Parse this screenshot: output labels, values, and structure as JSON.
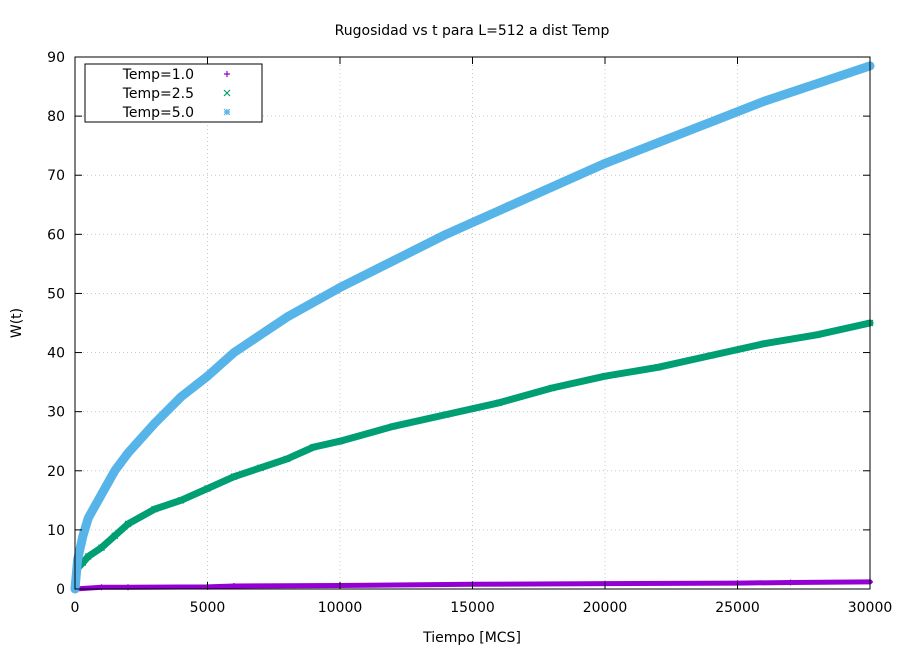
{
  "chart_data": {
    "type": "scatter",
    "title": "Rugosidad vs t para L=512 a dist Temp",
    "xlabel": "Tiempo [MCS]",
    "ylabel": "W(t)",
    "xlim": [
      0,
      30000
    ],
    "ylim": [
      0,
      90
    ],
    "x_ticks": [
      "0",
      "5000",
      "10000",
      "15000",
      "20000",
      "25000",
      "30000"
    ],
    "y_ticks": [
      "0",
      "10",
      "20",
      "30",
      "40",
      "50",
      "60",
      "70",
      "80",
      "90"
    ],
    "grid": true,
    "legend_position": "top-left",
    "series": [
      {
        "name": "Temp=1.0",
        "color": "#9400d3",
        "marker": "+",
        "x": [
          0,
          1000,
          2000,
          5000,
          6000,
          10000,
          15000,
          20000,
          25000,
          27000,
          30000
        ],
        "y": [
          0,
          0.3,
          0.3,
          0.35,
          0.5,
          0.6,
          0.8,
          0.9,
          1.0,
          1.1,
          1.2
        ]
      },
      {
        "name": "Temp=2.5",
        "color": "#009e73",
        "marker": "x",
        "x": [
          0,
          100,
          300,
          500,
          1000,
          1500,
          2000,
          3000,
          4000,
          5000,
          6000,
          7000,
          8000,
          9000,
          10000,
          12000,
          14000,
          16000,
          18000,
          20000,
          22000,
          24000,
          26000,
          28000,
          30000
        ],
        "y": [
          0,
          3.5,
          4.5,
          5.5,
          7,
          9,
          11,
          13.5,
          15,
          17,
          19,
          20.5,
          22,
          24,
          25,
          27.5,
          29.5,
          31.5,
          34,
          36,
          37.5,
          39.5,
          41.5,
          43,
          45
        ]
      },
      {
        "name": "Temp=5.0",
        "color": "#56b4e9",
        "marker": "*",
        "x": [
          0,
          100,
          300,
          500,
          1000,
          1500,
          2000,
          2500,
          3000,
          4000,
          5000,
          6000,
          7000,
          8000,
          9000,
          10000,
          12000,
          14000,
          16000,
          18000,
          20000,
          22000,
          24000,
          26000,
          28000,
          30000
        ],
        "y": [
          0,
          5,
          9,
          12,
          16,
          20,
          23,
          25.5,
          28,
          32.5,
          36,
          40,
          43,
          46,
          48.5,
          51,
          55.5,
          60,
          64,
          68,
          72,
          75.5,
          79,
          82.5,
          85.5,
          88.5
        ]
      }
    ]
  }
}
